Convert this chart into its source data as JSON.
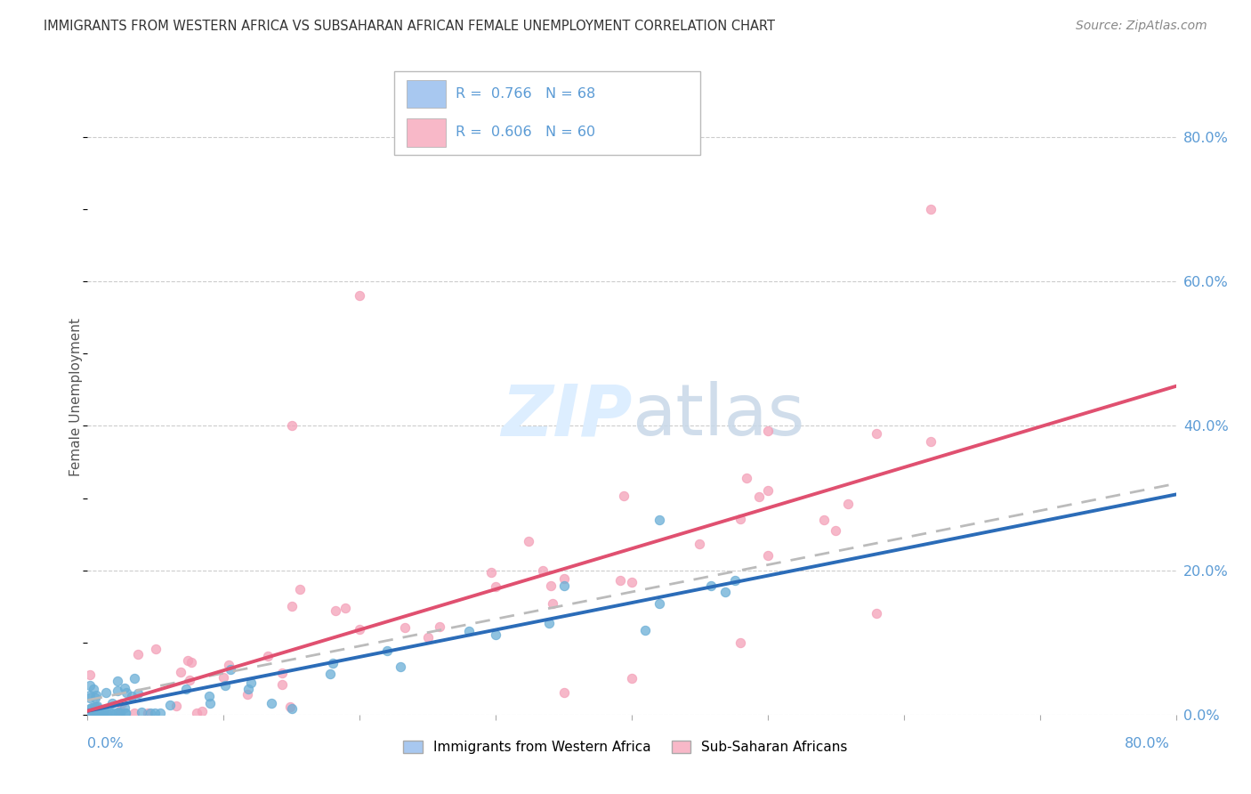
{
  "title": "IMMIGRANTS FROM WESTERN AFRICA VS SUBSAHARAN AFRICAN FEMALE UNEMPLOYMENT CORRELATION CHART",
  "source": "Source: ZipAtlas.com",
  "ylabel": "Female Unemployment",
  "yaxis_tick_vals": [
    0,
    20,
    40,
    60,
    80
  ],
  "xlim": [
    0,
    80
  ],
  "ylim": [
    0,
    88
  ],
  "legend_color1": "#a8c8f0",
  "legend_color2": "#f8b8c8",
  "series1_color": "#6aaed6",
  "series2_color": "#f4a0b8",
  "trend1_color": "#2b6cb8",
  "trend2_color": "#e05070",
  "dash_color": "#bbbbbb",
  "watermark_color": "#ddeeff",
  "background_color": "#ffffff",
  "tick_color": "#5b9bd5",
  "grid_color": "#cccccc",
  "title_color": "#333333",
  "source_color": "#888888",
  "ylabel_color": "#555555"
}
